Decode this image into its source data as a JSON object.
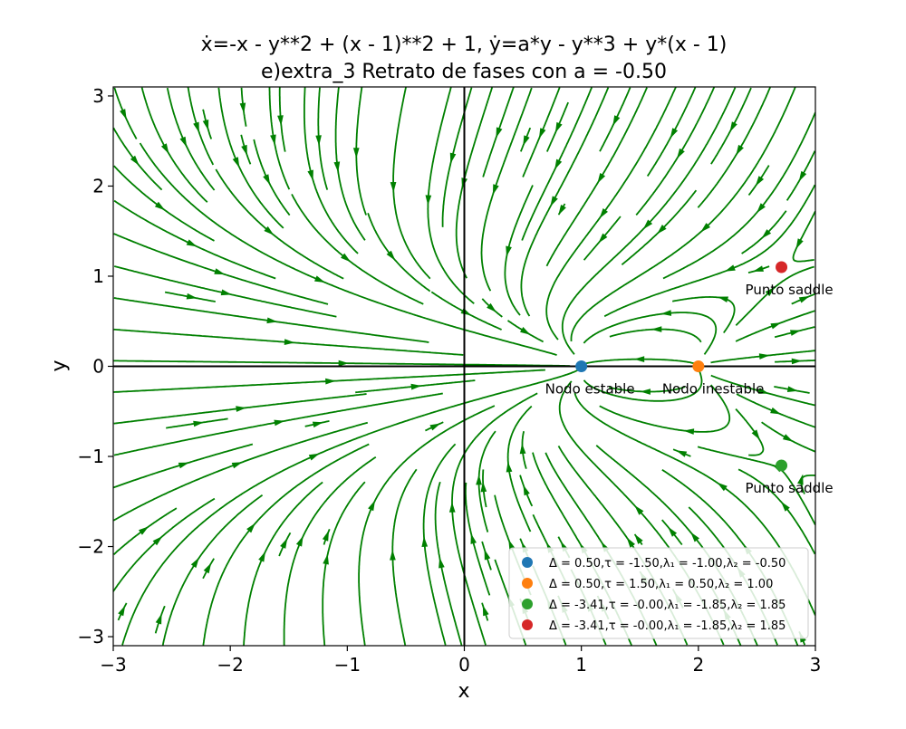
{
  "chart_data": {
    "type": "streamplot",
    "title_line1": "ẋ=-x - y**2 + (x - 1)**2 + 1, ẏ=a*y - y**3 + y*(x - 1)",
    "title_line2": "e)extra_3 Retrato de fases con a = -0.50",
    "xlabel": "x",
    "ylabel": "y",
    "xlim": [
      -3,
      3
    ],
    "ylim": [
      -3.1,
      3.1
    ],
    "xticks": [
      -3,
      -2,
      -1,
      0,
      1,
      2,
      3
    ],
    "yticks": [
      -3,
      -2,
      -1,
      0,
      1,
      2,
      3
    ],
    "xtick_labels": [
      "−3",
      "−2",
      "−1",
      "0",
      "1",
      "2",
      "3"
    ],
    "ytick_labels": [
      "−3",
      "−2",
      "−1",
      "0",
      "1",
      "2",
      "3"
    ],
    "parameter_a": -0.5,
    "stream_color": "#008000",
    "axis_lines": true,
    "grid": false,
    "legend_position": "lower right",
    "critical_points": [
      {
        "x": 1.0,
        "y": 0.0,
        "color": "#1f77b4",
        "annotation": "Nodo estable",
        "legend_text": "Δ = 0.50,τ = -1.50,λ₁ = -1.00,λ₂ = -0.50"
      },
      {
        "x": 2.0,
        "y": 0.0,
        "color": "#ff7f0e",
        "annotation": "Nodo inestable",
        "legend_text": "Δ = 0.50,τ = 1.50,λ₁ = 0.50,λ₂ = 1.00"
      },
      {
        "x": 2.71,
        "y": -1.1,
        "color": "#2ca02c",
        "annotation": "Punto saddle",
        "legend_text": "Δ = -3.41,τ = -0.00,λ₁ = -1.85,λ₂ = 1.85"
      },
      {
        "x": 2.71,
        "y": 1.1,
        "color": "#d62728",
        "annotation": "Punto saddle",
        "legend_text": "Δ = -3.41,τ = -0.00,λ₁ = -1.85,λ₂ = 1.85"
      }
    ]
  }
}
